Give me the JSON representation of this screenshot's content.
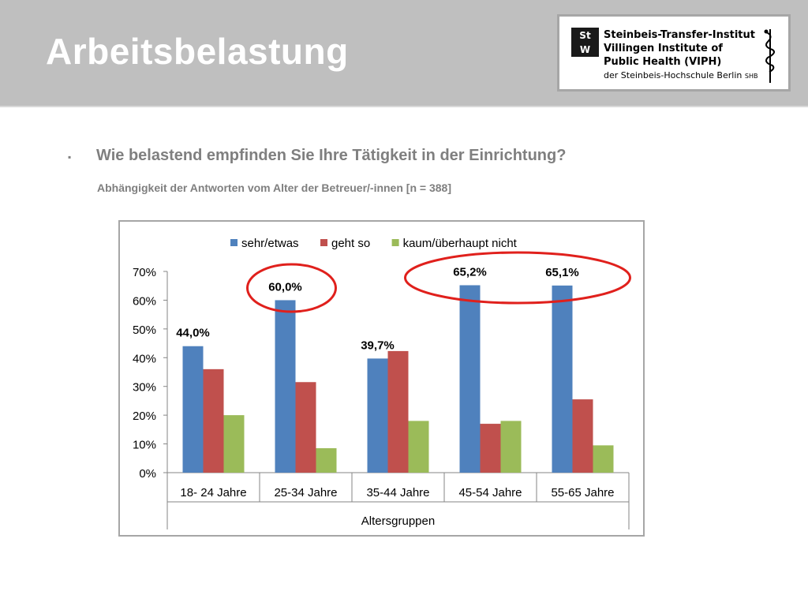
{
  "slide": {
    "title": "Arbeitsbelastung",
    "bullet_symbol": "▪",
    "question": "Wie belastend empfinden Sie Ihre Tätigkeit in der Einrichtung?",
    "subtitle": "Abhängigkeit der Antworten vom Alter der Betreuer/-innen [n = 388]"
  },
  "logo": {
    "mark_top": "St",
    "mark_bottom": "W",
    "line1": "Steinbeis-Transfer-Institut",
    "line2": "Villingen Institute of",
    "line3": "Public Health (VIPH)",
    "line4": "der Steinbeis-Hochschule Berlin",
    "line4_suffix": "SHB"
  },
  "chart_data": {
    "type": "bar",
    "title": "",
    "xlabel": "Altersgruppen",
    "ylabel": "",
    "ylim": [
      0,
      70
    ],
    "yticks": [
      "0%",
      "10%",
      "20%",
      "30%",
      "40%",
      "50%",
      "60%",
      "70%"
    ],
    "categories": [
      "18- 24 Jahre",
      "25-34 Jahre",
      "35-44 Jahre",
      "45-54 Jahre",
      "55-65 Jahre"
    ],
    "series": [
      {
        "name": "sehr/etwas",
        "color": "#4f81bd",
        "values": [
          44.0,
          60.0,
          39.7,
          65.2,
          65.1
        ]
      },
      {
        "name": "geht so",
        "color": "#c0504d",
        "values": [
          36.0,
          31.5,
          42.3,
          17.0,
          25.5
        ]
      },
      {
        "name": "kaum/überhaupt nicht",
        "color": "#9bbb59",
        "values": [
          20.0,
          8.5,
          18.0,
          18.0,
          9.5
        ]
      }
    ],
    "data_labels": [
      "44,0%",
      "60,0%",
      "39,7%",
      "65,2%",
      "65,1%"
    ],
    "legend": "top",
    "grid": false,
    "annotations": [
      "red ellipse around 60,0%",
      "red ellipse around 65,2% and 65,1%"
    ],
    "highlight_color": "#e0201c"
  }
}
